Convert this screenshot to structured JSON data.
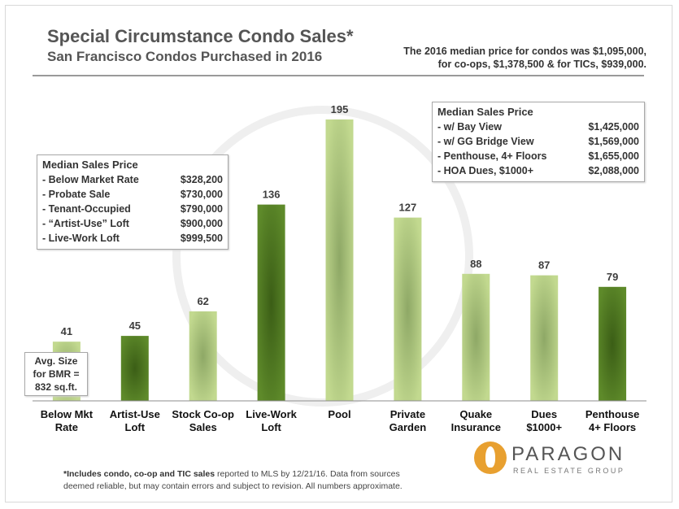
{
  "header": {
    "title": "Special Circumstance Condo Sales*",
    "subtitle": "San Francisco Condos Purchased in 2016",
    "note_line1": "The 2016 median price for condos was $1,095,000,",
    "note_line2": "for co-ops, $1,378,500 & for TICs, $939,000."
  },
  "left_box": {
    "heading": "Median  Sales  Price",
    "rows": [
      {
        "label": "- Below Market Rate",
        "value": "$328,200"
      },
      {
        "label": "- Probate Sale",
        "value": "$730,000"
      },
      {
        "label": "- Tenant-Occupied",
        "value": "$790,000"
      },
      {
        "label": "- “Artist-Use” Loft",
        "value": "$900,000"
      },
      {
        "label": "- Live-Work Loft",
        "value": "$999,500"
      }
    ]
  },
  "right_box": {
    "heading": "Median  Sales  Price",
    "rows": [
      {
        "label": "- w/ Bay View",
        "value": "$1,425,000"
      },
      {
        "label": "- w/ GG Bridge View",
        "value": "$1,569,000"
      },
      {
        "label": "- Penthouse,  4+ Floors",
        "value": "$1,655,000"
      },
      {
        "label": "- HOA Dues, $1000+",
        "value": "$2,088,000"
      }
    ]
  },
  "bmr_box": {
    "line1": "Avg. Size",
    "line2": "for BMR =",
    "line3": "832 sq.ft."
  },
  "chart_data": {
    "type": "bar",
    "title": "Special Circumstance Condo Sales*",
    "subtitle": "San Francisco Condos Purchased in 2016",
    "categories": [
      [
        "Below Mkt",
        "Rate"
      ],
      [
        "Artist-Use",
        "Loft"
      ],
      [
        "Stock Co-op",
        "Sales"
      ],
      [
        "Live-Work",
        "Loft"
      ],
      [
        "Pool"
      ],
      [
        "Private",
        "Garden"
      ],
      [
        "Quake",
        "Insurance"
      ],
      [
        "Dues",
        "$1000+"
      ],
      [
        "Penthouse",
        "4+ Floors"
      ]
    ],
    "values": [
      41,
      45,
      62,
      136,
      195,
      127,
      88,
      87,
      79
    ],
    "bar_colors": [
      "light",
      "dark",
      "light",
      "dark",
      "light",
      "light",
      "light",
      "light",
      "dark"
    ],
    "colors": {
      "light": "#c2d98f",
      "light_center": "#8ea866",
      "dark": "#5e8a2a",
      "dark_center": "#3b5e16"
    },
    "ylim": [
      0,
      200
    ],
    "grid": false,
    "legend": "none"
  },
  "footnote": {
    "bold_part": "*Includes condo, co-op and TIC sales",
    "rest_line1": " reported to MLS by 12/21/16. Data from sources",
    "line2": "deemed reliable,  but may contain errors and subject to revision.  All numbers approximate."
  },
  "logo": {
    "icon": "paragon-flame-icon",
    "name": "PARAGON",
    "tagline": "REAL ESTATE GROUP"
  }
}
